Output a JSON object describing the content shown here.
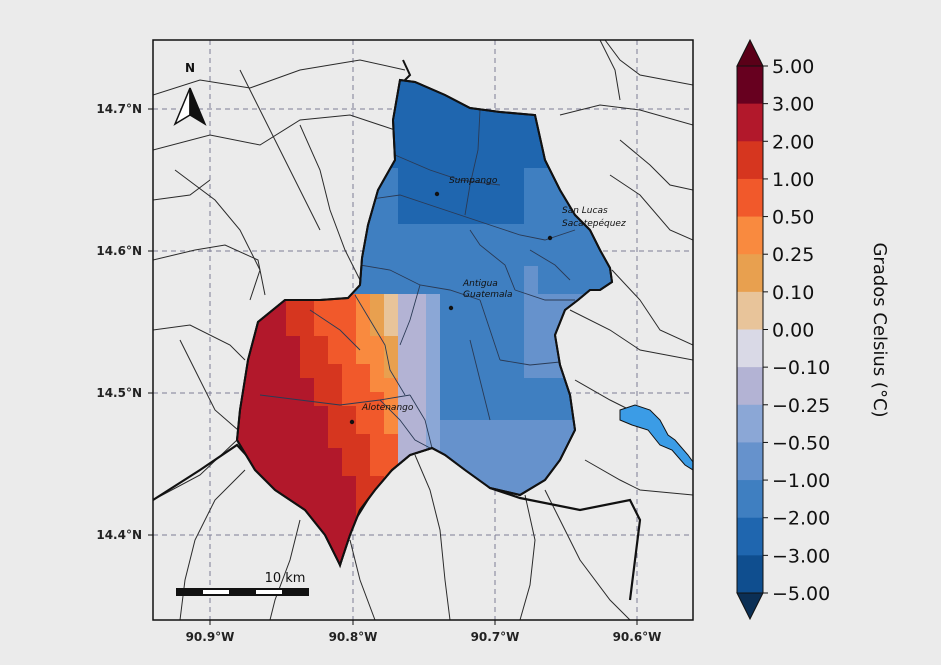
{
  "map": {
    "lat_ticks": [
      "14.7°N",
      "14.6°N",
      "14.5°N",
      "14.4°N"
    ],
    "lon_ticks": [
      "90.9°W",
      "90.8°W",
      "90.7°W",
      "90.6°W"
    ],
    "places": [
      {
        "name": "Sumpango",
        "lines": [
          "Sumpango"
        ]
      },
      {
        "name": "San Lucas Sacatepéquez",
        "lines": [
          "San Lucas",
          "Sacatepéquez"
        ]
      },
      {
        "name": "Antigua Guatemala",
        "lines": [
          "Antigua",
          "Guatemala"
        ]
      },
      {
        "name": "Alotenango",
        "lines": [
          "Alotenango"
        ]
      }
    ],
    "north_label": "N",
    "scale_label": "10 km"
  },
  "colorbar": {
    "label": "Grados Celsius (°C)",
    "ticks": [
      "5.00",
      "3.00",
      "2.00",
      "1.00",
      "0.50",
      "0.25",
      "0.10",
      "0.00",
      "−0.10",
      "−0.25",
      "−0.50",
      "−1.00",
      "−2.00",
      "−3.00",
      "−5.00"
    ],
    "colors": [
      "#67001f",
      "#b2182b",
      "#d6361f",
      "#f1592b",
      "#f98a3f",
      "#e8a04f",
      "#e8c49a",
      "#d9d9e6",
      "#b3b3d4",
      "#8ba7d6",
      "#6692cc",
      "#3f7fc1",
      "#1f66af",
      "#0f4e8f"
    ],
    "max_color": "#5a0018",
    "min_color": "#0b2f55"
  },
  "colors": {
    "lake": "#3b9ce6"
  }
}
